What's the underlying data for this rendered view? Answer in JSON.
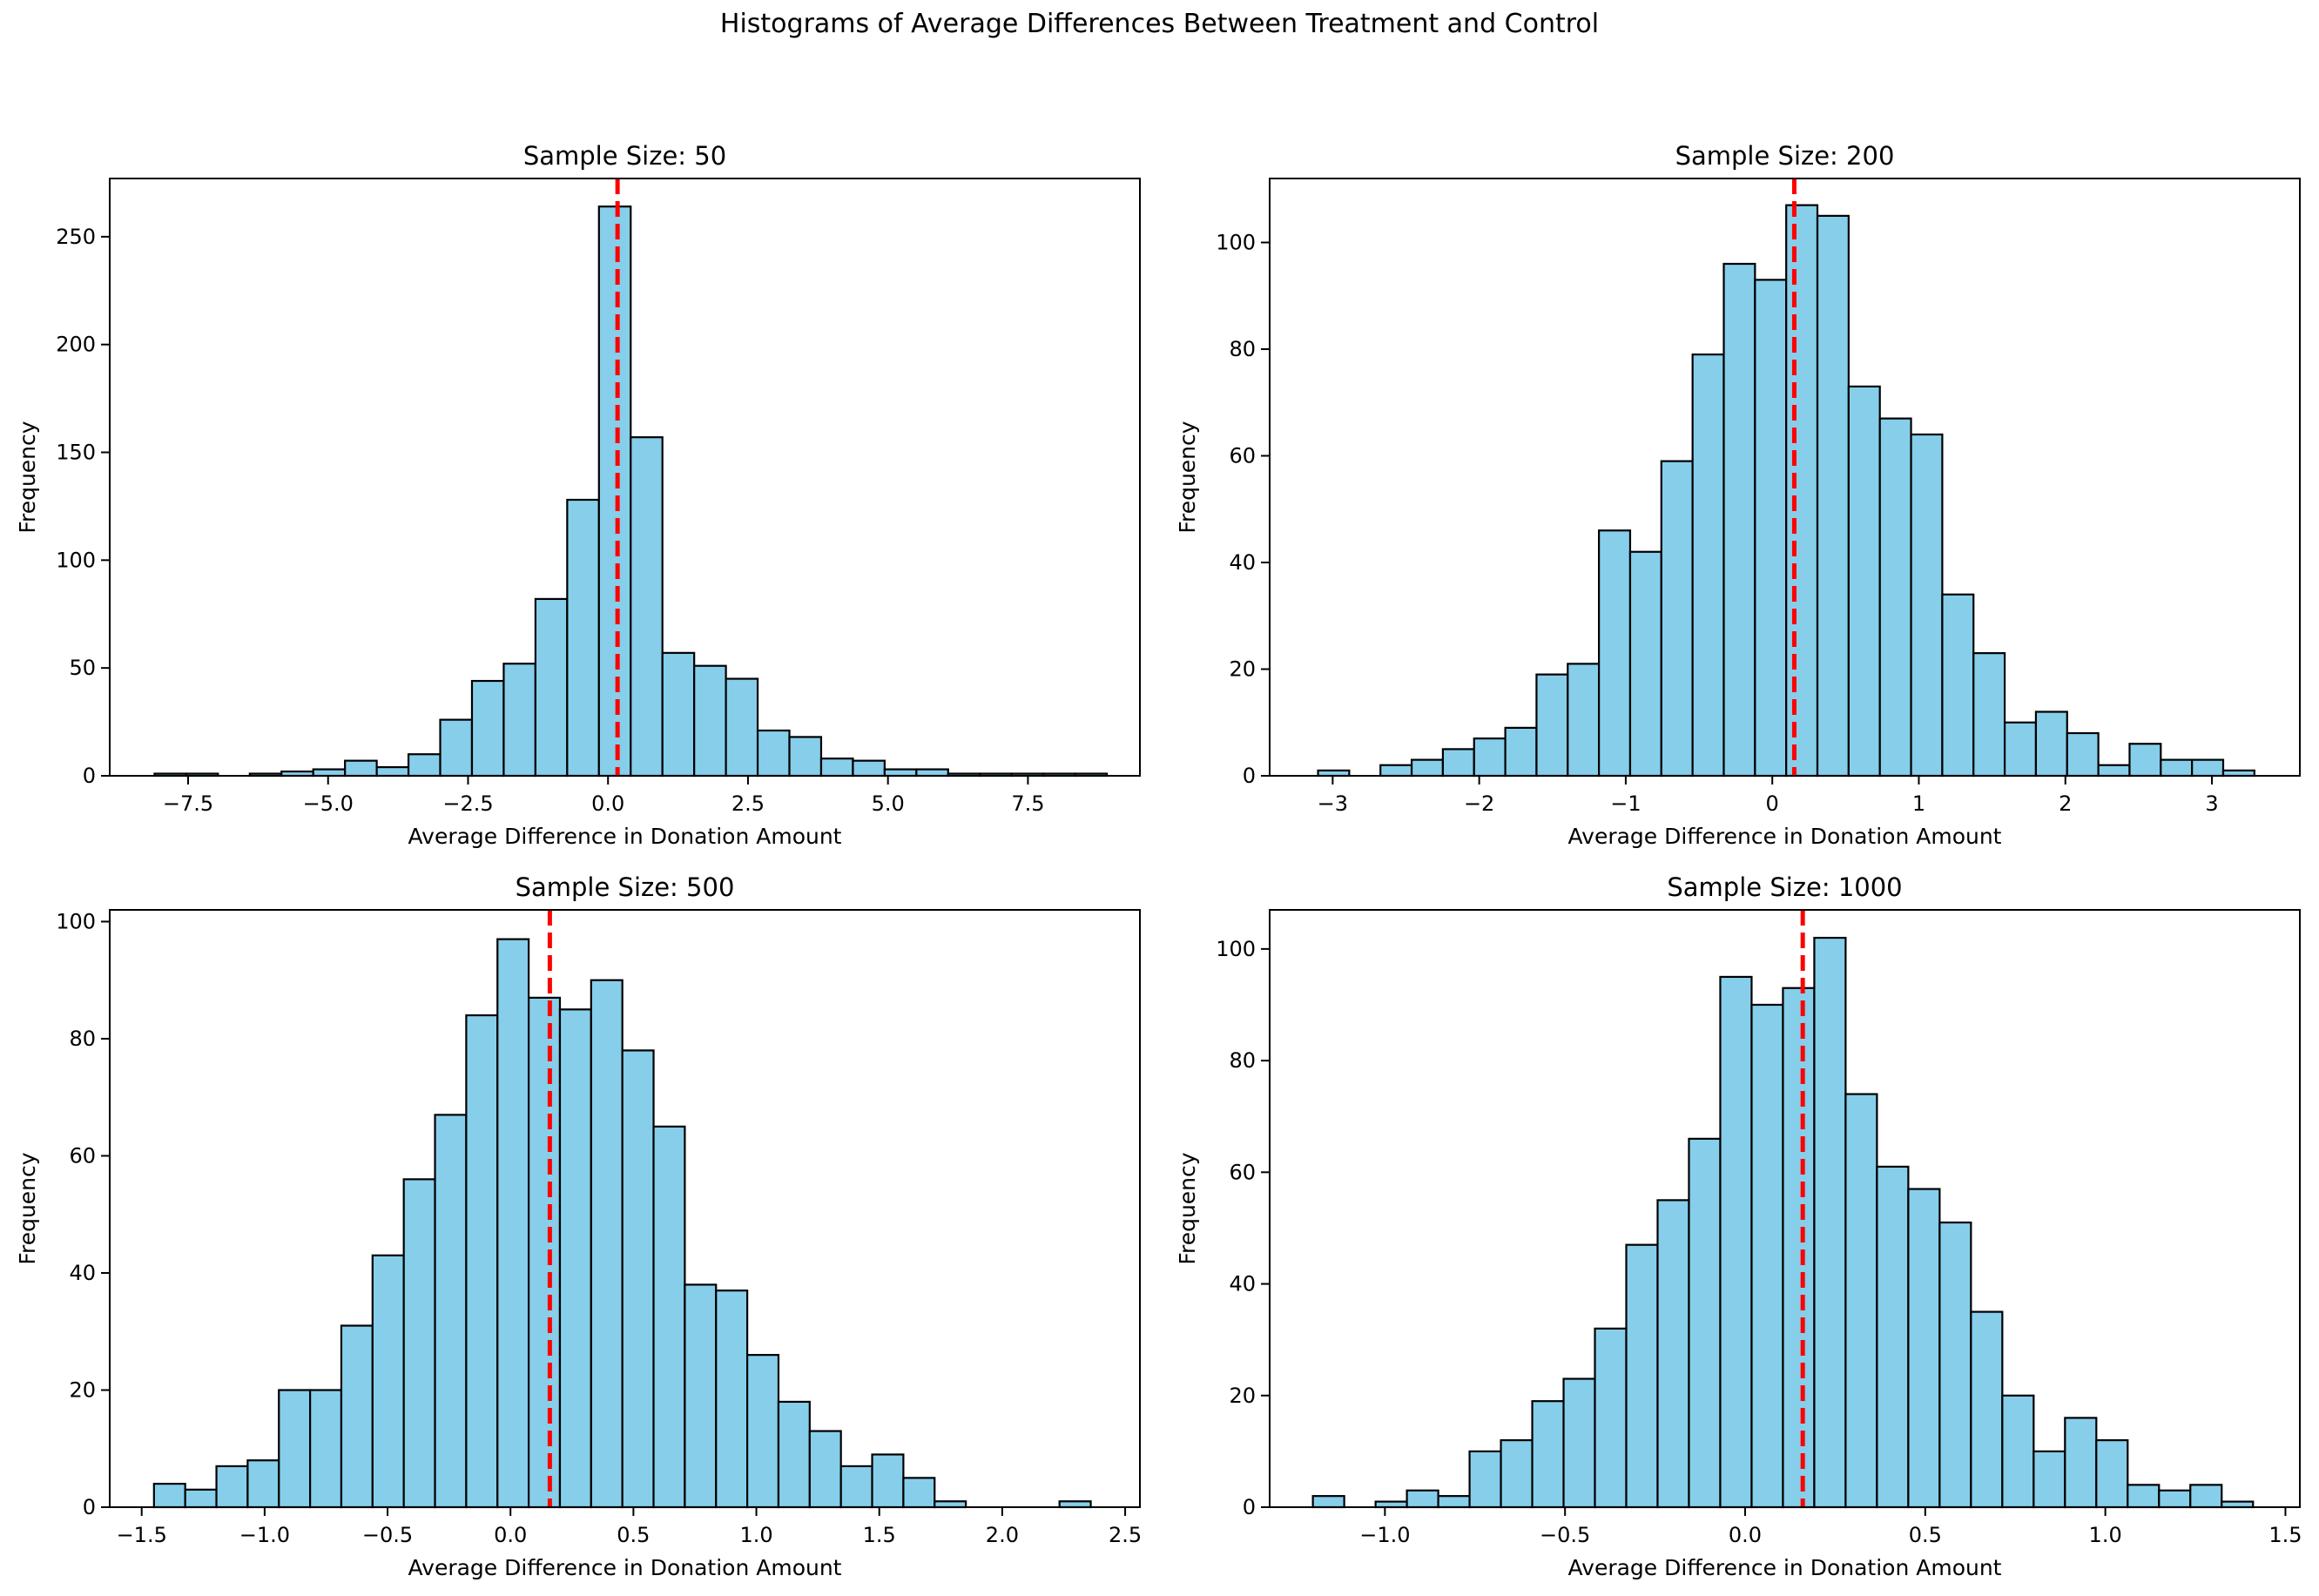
{
  "figure": {
    "suptitle": "Histograms of Average Differences Between Treatment and Control"
  },
  "style": {
    "bar_fill": "#87ceeb",
    "bar_edge": "#000000",
    "reference_line_color": "#ff0000",
    "reference_line_style": "dashed"
  },
  "chart_data": [
    {
      "type": "bar",
      "title": "Sample Size: 50",
      "xlabel": "Average Difference in Donation Amount",
      "ylabel": "Frequency",
      "xlim": [
        -8.9,
        9.5
      ],
      "ylim": [
        0,
        277
      ],
      "xticks": [
        -7.5,
        -5.0,
        -2.5,
        0.0,
        2.5,
        5.0,
        7.5
      ],
      "xtick_labels": [
        "−7.5",
        "−5.0",
        "−2.5",
        "0.0",
        "2.5",
        "5.0",
        "7.5"
      ],
      "yticks": [
        0,
        50,
        100,
        150,
        200,
        250
      ],
      "ytick_labels": [
        "0",
        "50",
        "100",
        "150",
        "200",
        "250"
      ],
      "bin_start": -8.1,
      "bin_width": 0.567,
      "values": [
        1,
        1,
        0,
        1,
        2,
        3,
        7,
        4,
        10,
        26,
        44,
        52,
        82,
        128,
        264,
        157,
        57,
        51,
        45,
        21,
        18,
        8,
        7,
        3,
        3,
        1,
        1,
        1,
        1,
        1
      ],
      "reference_line": 0.17
    },
    {
      "type": "bar",
      "title": "Sample Size: 200",
      "xlabel": "Average Difference in Donation Amount",
      "ylabel": "Frequency",
      "xlim": [
        -3.43,
        3.6
      ],
      "ylim": [
        0,
        112
      ],
      "xticks": [
        -3,
        -2,
        -1,
        0,
        1,
        2,
        3
      ],
      "xtick_labels": [
        "−3",
        "−2",
        "−1",
        "0",
        "1",
        "2",
        "3"
      ],
      "yticks": [
        0,
        20,
        40,
        60,
        80,
        100
      ],
      "ytick_labels": [
        "0",
        "20",
        "40",
        "60",
        "80",
        "100"
      ],
      "bin_start": -3.1,
      "bin_width": 0.213,
      "values": [
        1,
        0,
        2,
        3,
        5,
        7,
        9,
        19,
        21,
        46,
        42,
        59,
        79,
        96,
        93,
        107,
        105,
        73,
        67,
        64,
        34,
        23,
        10,
        12,
        8,
        2,
        6,
        3,
        3,
        1
      ],
      "reference_line": 0.15
    },
    {
      "type": "bar",
      "title": "Sample Size: 500",
      "xlabel": "Average Difference in Donation Amount",
      "ylabel": "Frequency",
      "xlim": [
        -1.63,
        2.56
      ],
      "ylim": [
        0,
        102
      ],
      "xticks": [
        -1.5,
        -1.0,
        -0.5,
        0.0,
        0.5,
        1.0,
        1.5,
        2.0,
        2.5
      ],
      "xtick_labels": [
        "−1.5",
        "−1.0",
        "−0.5",
        "0.0",
        "0.5",
        "1.0",
        "1.5",
        "2.0",
        "2.5"
      ],
      "yticks": [
        0,
        20,
        40,
        60,
        80,
        100
      ],
      "ytick_labels": [
        "0",
        "20",
        "40",
        "60",
        "80",
        "100"
      ],
      "bin_start": -1.45,
      "bin_width": 0.127,
      "values": [
        4,
        3,
        7,
        8,
        20,
        20,
        31,
        43,
        56,
        67,
        84,
        97,
        87,
        85,
        90,
        78,
        65,
        38,
        37,
        26,
        18,
        13,
        7,
        9,
        5,
        1,
        0,
        0,
        0,
        1
      ],
      "reference_line": 0.16
    },
    {
      "type": "bar",
      "title": "Sample Size: 1000",
      "xlabel": "Average Difference in Donation Amount",
      "ylabel": "Frequency",
      "xlim": [
        -1.32,
        1.54
      ],
      "ylim": [
        0,
        107
      ],
      "xticks": [
        -1.0,
        -0.5,
        0.0,
        0.5,
        1.0,
        1.5
      ],
      "xtick_labels": [
        "−1.0",
        "−0.5",
        "0.0",
        "0.5",
        "1.0",
        "1.5"
      ],
      "yticks": [
        0,
        20,
        40,
        60,
        80,
        100
      ],
      "ytick_labels": [
        "0",
        "20",
        "40",
        "60",
        "80",
        "100"
      ],
      "bin_start": -1.2,
      "bin_width": 0.087,
      "values": [
        2,
        0,
        1,
        3,
        2,
        10,
        12,
        19,
        23,
        32,
        47,
        55,
        66,
        95,
        90,
        93,
        102,
        74,
        61,
        57,
        51,
        35,
        20,
        10,
        16,
        12,
        4,
        3,
        4,
        1
      ],
      "reference_line": 0.16
    }
  ]
}
